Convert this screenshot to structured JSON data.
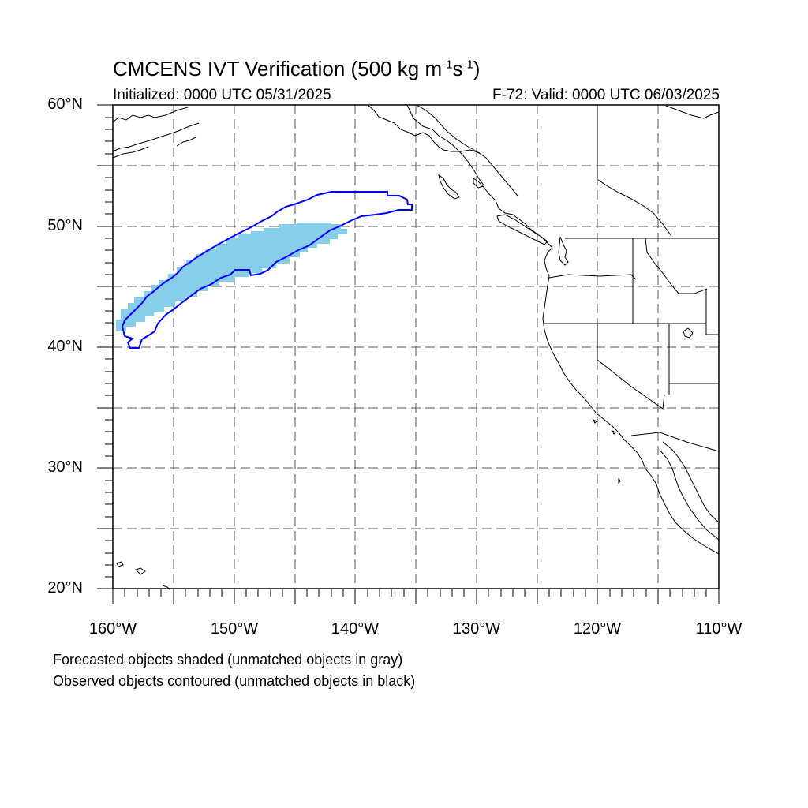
{
  "map": {
    "title_main": "CMCENS IVT Verification (500 kg m",
    "title_sup1": "-1",
    "title_mid": "s",
    "title_sup2": "-1",
    "title_end": ")",
    "initialized": "Initialized: 0000 UTC 05/31/2025",
    "valid": "F-72: Valid: 0000 UTC 06/03/2025",
    "lat_labels": [
      "60°N",
      "50°N",
      "40°N",
      "30°N",
      "20°N"
    ],
    "lon_labels": [
      "160°W",
      "150°W",
      "140°W",
      "130°W",
      "120°W",
      "110°W"
    ],
    "extent": {
      "lon": [
        -160,
        -110
      ],
      "lat": [
        20,
        60
      ]
    },
    "gridline_interval_deg": 5,
    "forecast_object_color": "#87ceeb",
    "observed_object_color": "#0000ff",
    "coastline_color": "#000000"
  },
  "legend": {
    "line1": "Forecasted objects shaded (unmatched objects in gray)",
    "line2": "Observed objects contoured (unmatched objects in black)"
  }
}
